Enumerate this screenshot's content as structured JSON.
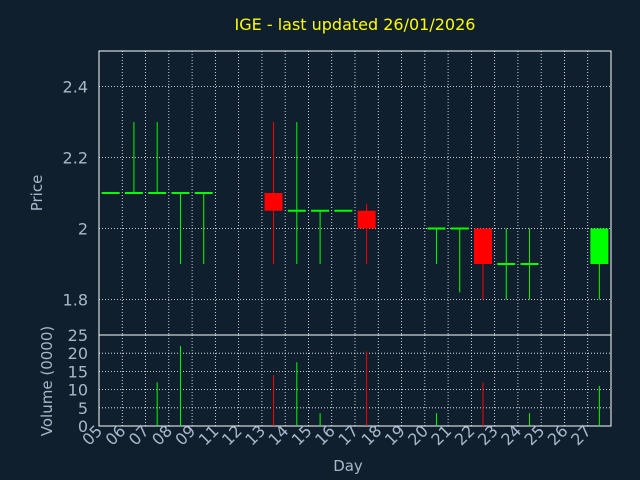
{
  "chart_data": {
    "type": "candlestick",
    "title": "IGE - last updated 26/01/2026",
    "xlabel": "Day",
    "x_ticks": [
      "05",
      "06",
      "07",
      "08",
      "09",
      "11",
      "12",
      "13",
      "14",
      "15",
      "16",
      "17",
      "18",
      "19",
      "20",
      "21",
      "22",
      "23",
      "24",
      "25",
      "26",
      "27"
    ],
    "price": {
      "ylabel": "Price",
      "ylim": [
        1.7,
        2.5
      ],
      "y_ticks": [
        {
          "value": 1.8,
          "label": "1.8"
        },
        {
          "value": 2.0,
          "label": "2"
        },
        {
          "value": 2.2,
          "label": "2.2"
        },
        {
          "value": 2.4,
          "label": "2.4"
        }
      ]
    },
    "volume": {
      "ylabel": "Volume (0000)",
      "ylim": [
        0,
        25
      ],
      "y_ticks": [
        {
          "value": 0,
          "label": "0"
        },
        {
          "value": 5,
          "label": "5"
        },
        {
          "value": 10,
          "label": "10"
        },
        {
          "value": 15,
          "label": "15"
        },
        {
          "value": 20,
          "label": "20"
        },
        {
          "value": 25,
          "label": "25"
        }
      ]
    },
    "colors": {
      "up": "#00ff00",
      "down": "#ff0000",
      "flat": "#00ff00"
    },
    "candles": [
      {
        "slot": 0,
        "open": 2.1,
        "high": 2.1,
        "low": 2.1,
        "close": 2.1,
        "volume": 0
      },
      {
        "slot": 1,
        "open": 2.1,
        "high": 2.3,
        "low": 2.1,
        "close": 2.1,
        "volume": 0
      },
      {
        "slot": 2,
        "open": 2.1,
        "high": 2.3,
        "low": 2.1,
        "close": 2.1,
        "volume": 12
      },
      {
        "slot": 3,
        "open": 2.1,
        "high": 2.1,
        "low": 1.9,
        "close": 2.1,
        "volume": 22
      },
      {
        "slot": 4,
        "open": 2.1,
        "high": 2.1,
        "low": 1.9,
        "close": 2.1,
        "volume": 0
      },
      {
        "slot": 7,
        "open": 2.1,
        "high": 2.3,
        "low": 1.9,
        "close": 2.05,
        "volume": 14
      },
      {
        "slot": 8,
        "open": 2.05,
        "high": 2.3,
        "low": 1.9,
        "close": 2.05,
        "volume": 17.5
      },
      {
        "slot": 9,
        "open": 2.05,
        "high": 2.05,
        "low": 1.9,
        "close": 2.05,
        "volume": 3.5
      },
      {
        "slot": 10,
        "open": 2.05,
        "high": 2.05,
        "low": 2.05,
        "close": 2.05,
        "volume": 0
      },
      {
        "slot": 11,
        "open": 2.05,
        "high": 2.07,
        "low": 1.9,
        "close": 2.0,
        "volume": 20.5
      },
      {
        "slot": 14,
        "open": 2.0,
        "high": 2.0,
        "low": 1.9,
        "close": 2.0,
        "volume": 3.5
      },
      {
        "slot": 15,
        "open": 2.0,
        "high": 2.0,
        "low": 1.82,
        "close": 2.0,
        "volume": 0
      },
      {
        "slot": 16,
        "open": 2.0,
        "high": 2.0,
        "low": 1.8,
        "close": 1.9,
        "volume": 12
      },
      {
        "slot": 17,
        "open": 1.9,
        "high": 2.0,
        "low": 1.8,
        "close": 1.9,
        "volume": 0
      },
      {
        "slot": 18,
        "open": 1.9,
        "high": 2.0,
        "low": 1.8,
        "close": 1.9,
        "volume": 3.5
      },
      {
        "slot": 21,
        "open": 1.9,
        "high": 2.0,
        "low": 1.8,
        "close": 2.0,
        "volume": 11
      }
    ]
  }
}
